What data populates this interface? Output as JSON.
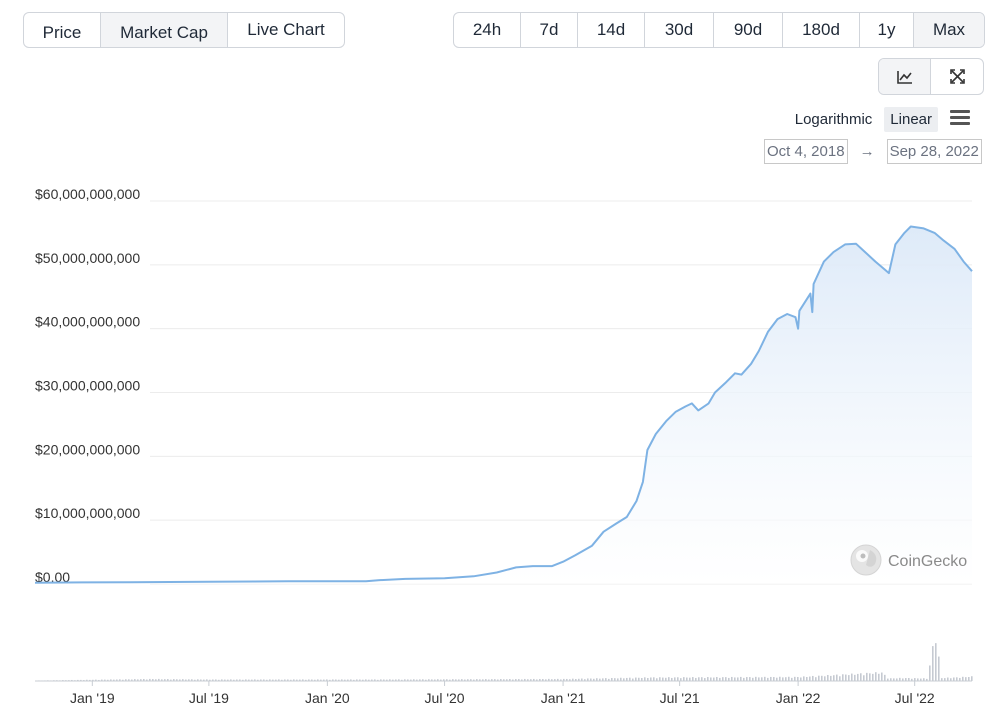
{
  "metric_tabs": [
    {
      "label": "Price",
      "active": false
    },
    {
      "label": "Market Cap",
      "active": true
    },
    {
      "label": "Live Chart",
      "active": false
    }
  ],
  "range_tabs": [
    {
      "label": "24h",
      "active": false
    },
    {
      "label": "7d",
      "active": false
    },
    {
      "label": "14d",
      "active": false
    },
    {
      "label": "30d",
      "active": false
    },
    {
      "label": "90d",
      "active": false
    },
    {
      "label": "180d",
      "active": false
    },
    {
      "label": "1y",
      "active": false
    },
    {
      "label": "Max",
      "active": true
    }
  ],
  "view_tools": [
    {
      "icon": "line-chart-icon",
      "active": true
    },
    {
      "icon": "expand-icon",
      "active": false
    }
  ],
  "scale": {
    "logarithmic": "Logarithmic",
    "linear": "Linear",
    "selected": "linear"
  },
  "menu_icon": "hamburger-menu-icon",
  "date_range": {
    "from": "Oct 4, 2018",
    "arrow": "→",
    "to": "Sep 28, 2022"
  },
  "watermark": {
    "text": "CoinGecko",
    "icon": "gecko-logo-icon"
  },
  "colors": {
    "line": "#7eb2e4",
    "fill_top": "#dce9f8",
    "grid": "#ececec",
    "volume": "#c6cad2"
  },
  "chart_data": {
    "type": "area",
    "ylim": [
      0,
      60000000000
    ],
    "y_ticks": [
      {
        "value": 0,
        "label": "$0.00"
      },
      {
        "value": 10000000000,
        "label": "$10,000,000,000"
      },
      {
        "value": 20000000000,
        "label": "$20,000,000,000"
      },
      {
        "value": 30000000000,
        "label": "$30,000,000,000"
      },
      {
        "value": 40000000000,
        "label": "$40,000,000,000"
      },
      {
        "value": 50000000000,
        "label": "$50,000,000,000"
      },
      {
        "value": 60000000000,
        "label": "$60,000,000,000"
      }
    ],
    "xlim": [
      "2018-10-04",
      "2022-09-28"
    ],
    "x_ticks": [
      {
        "date": "2019-01-01",
        "label": "Jan '19"
      },
      {
        "date": "2019-07-01",
        "label": "Jul '19"
      },
      {
        "date": "2020-01-01",
        "label": "Jan '20"
      },
      {
        "date": "2020-07-01",
        "label": "Jul '20"
      },
      {
        "date": "2021-01-01",
        "label": "Jan '21"
      },
      {
        "date": "2021-07-01",
        "label": "Jul '21"
      },
      {
        "date": "2022-01-01",
        "label": "Jan '22"
      },
      {
        "date": "2022-07-01",
        "label": "Jul '22"
      }
    ],
    "series": [
      {
        "points": [
          [
            "2018-10-04",
            200000000
          ],
          [
            "2018-12-15",
            250000000
          ],
          [
            "2019-03-01",
            270000000
          ],
          [
            "2019-07-01",
            350000000
          ],
          [
            "2019-11-01",
            430000000
          ],
          [
            "2020-01-01",
            430000000
          ],
          [
            "2020-03-01",
            420000000
          ],
          [
            "2020-03-20",
            600000000
          ],
          [
            "2020-05-01",
            800000000
          ],
          [
            "2020-07-01",
            900000000
          ],
          [
            "2020-08-15",
            1200000000
          ],
          [
            "2020-09-20",
            1800000000
          ],
          [
            "2020-10-20",
            2600000000
          ],
          [
            "2020-11-15",
            2800000000
          ],
          [
            "2020-12-15",
            2800000000
          ],
          [
            "2021-01-01",
            3500000000
          ],
          [
            "2021-01-20",
            4500000000
          ],
          [
            "2021-02-15",
            6000000000
          ],
          [
            "2021-03-05",
            8200000000
          ],
          [
            "2021-03-25",
            9500000000
          ],
          [
            "2021-04-10",
            10500000000
          ],
          [
            "2021-04-25",
            13000000000
          ],
          [
            "2021-05-05",
            16000000000
          ],
          [
            "2021-05-12",
            21000000000
          ],
          [
            "2021-05-25",
            23500000000
          ],
          [
            "2021-06-10",
            25500000000
          ],
          [
            "2021-06-25",
            27000000000
          ],
          [
            "2021-07-10",
            27800000000
          ],
          [
            "2021-07-20",
            28300000000
          ],
          [
            "2021-07-30",
            27200000000
          ],
          [
            "2021-08-15",
            28300000000
          ],
          [
            "2021-08-25",
            30000000000
          ],
          [
            "2021-09-10",
            31500000000
          ],
          [
            "2021-09-25",
            33000000000
          ],
          [
            "2021-10-05",
            32800000000
          ],
          [
            "2021-10-20",
            34500000000
          ],
          [
            "2021-11-01",
            36500000000
          ],
          [
            "2021-11-15",
            39500000000
          ],
          [
            "2021-11-30",
            41500000000
          ],
          [
            "2021-12-15",
            42300000000
          ],
          [
            "2021-12-28",
            41800000000
          ],
          [
            "2022-01-01",
            40000000000
          ],
          [
            "2022-01-03",
            42800000000
          ],
          [
            "2022-01-20",
            45500000000
          ],
          [
            "2022-01-23",
            42600000000
          ],
          [
            "2022-01-25",
            47000000000
          ],
          [
            "2022-02-10",
            50500000000
          ],
          [
            "2022-02-25",
            52000000000
          ],
          [
            "2022-03-15",
            53200000000
          ],
          [
            "2022-04-01",
            53300000000
          ],
          [
            "2022-04-15",
            52000000000
          ],
          [
            "2022-05-01",
            50500000000
          ],
          [
            "2022-05-15",
            49300000000
          ],
          [
            "2022-05-22",
            48700000000
          ],
          [
            "2022-06-01",
            53200000000
          ],
          [
            "2022-06-15",
            55000000000
          ],
          [
            "2022-06-25",
            56000000000
          ],
          [
            "2022-07-15",
            55700000000
          ],
          [
            "2022-08-01",
            55000000000
          ],
          [
            "2022-08-15",
            53800000000
          ],
          [
            "2022-09-01",
            52500000000
          ],
          [
            "2022-09-15",
            50500000000
          ],
          [
            "2022-09-28",
            49000000000
          ]
        ]
      }
    ],
    "volume": {
      "points": [
        [
          "2018-10-04",
          0.01
        ],
        [
          "2019-04-01",
          0.04
        ],
        [
          "2019-07-01",
          0.03
        ],
        [
          "2020-03-01",
          0.03
        ],
        [
          "2021-01-01",
          0.04
        ],
        [
          "2021-05-15",
          0.07
        ],
        [
          "2022-01-01",
          0.08
        ],
        [
          "2022-05-10",
          0.17
        ],
        [
          "2022-05-20",
          0.05
        ],
        [
          "2022-06-10",
          0.06
        ],
        [
          "2022-07-20",
          0.05
        ],
        [
          "2022-08-01",
          1.0
        ],
        [
          "2022-08-10",
          0.06
        ],
        [
          "2022-09-01",
          0.07
        ],
        [
          "2022-09-28",
          0.09
        ]
      ]
    }
  }
}
